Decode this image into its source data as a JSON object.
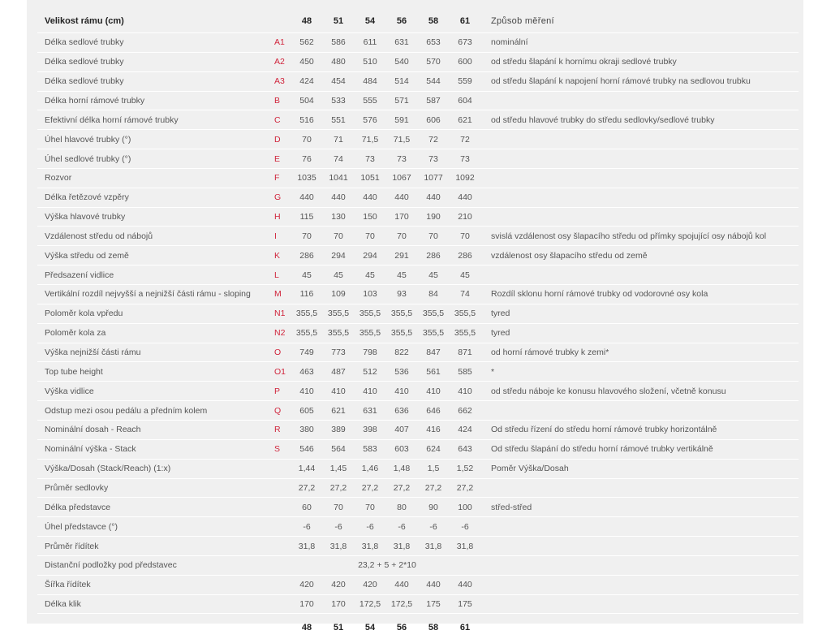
{
  "header": {
    "label": "Velikost rámu (cm)",
    "sizes": [
      "48",
      "51",
      "54",
      "56",
      "58",
      "61"
    ],
    "method": "Způsob měření"
  },
  "rows": [
    {
      "label": "Délka sedlové trubky",
      "code": "A1",
      "values": [
        "562",
        "586",
        "611",
        "631",
        "653",
        "673"
      ],
      "desc": "nominální"
    },
    {
      "label": "Délka sedlové trubky",
      "code": "A2",
      "values": [
        "450",
        "480",
        "510",
        "540",
        "570",
        "600"
      ],
      "desc": "od středu šlapání k hornímu okraji sedlové trubky"
    },
    {
      "label": "Délka sedlové trubky",
      "code": "A3",
      "values": [
        "424",
        "454",
        "484",
        "514",
        "544",
        "559"
      ],
      "desc": "od středu šlapání k napojení horní rámové trubky na sedlovou trubku"
    },
    {
      "label": "Délka horní rámové trubky",
      "code": "B",
      "values": [
        "504",
        "533",
        "555",
        "571",
        "587",
        "604"
      ],
      "desc": ""
    },
    {
      "label": "Efektivní délka horní rámové trubky",
      "code": "C",
      "values": [
        "516",
        "551",
        "576",
        "591",
        "606",
        "621"
      ],
      "desc": "od středu hlavové trubky do středu sedlovky/sedlové trubky"
    },
    {
      "label": "Úhel hlavové trubky (°)",
      "code": "D",
      "values": [
        "70",
        "71",
        "71,5",
        "71,5",
        "72",
        "72"
      ],
      "desc": ""
    },
    {
      "label": "Úhel sedlové trubky (°)",
      "code": "E",
      "values": [
        "76",
        "74",
        "73",
        "73",
        "73",
        "73"
      ],
      "desc": ""
    },
    {
      "label": "Rozvor",
      "code": "F",
      "values": [
        "1035",
        "1041",
        "1051",
        "1067",
        "1077",
        "1092"
      ],
      "desc": ""
    },
    {
      "label": "Délka řetězové vzpěry",
      "code": "G",
      "values": [
        "440",
        "440",
        "440",
        "440",
        "440",
        "440"
      ],
      "desc": ""
    },
    {
      "label": "Výška hlavové trubky",
      "code": "H",
      "values": [
        "115",
        "130",
        "150",
        "170",
        "190",
        "210"
      ],
      "desc": ""
    },
    {
      "label": "Vzdálenost středu od nábojů",
      "code": "I",
      "values": [
        "70",
        "70",
        "70",
        "70",
        "70",
        "70"
      ],
      "desc": "svislá vzdálenost osy šlapacího středu od přímky spojující osy nábojů kol"
    },
    {
      "label": "Výška středu od země",
      "code": "K",
      "values": [
        "286",
        "294",
        "294",
        "291",
        "286",
        "286"
      ],
      "desc": "vzdálenost osy šlapacího středu od země"
    },
    {
      "label": "Předsazení vidlice",
      "code": "L",
      "values": [
        "45",
        "45",
        "45",
        "45",
        "45",
        "45"
      ],
      "desc": ""
    },
    {
      "label": "Vertikální rozdíl nejvyšší a nejnižší části rámu - sloping",
      "code": "M",
      "values": [
        "116",
        "109",
        "103",
        "93",
        "84",
        "74"
      ],
      "desc": "Rozdíl sklonu horní rámové trubky od vodorovné osy kola"
    },
    {
      "label": "Poloměr kola vpředu",
      "code": "N1",
      "values": [
        "355,5",
        "355,5",
        "355,5",
        "355,5",
        "355,5",
        "355,5"
      ],
      "desc": "tyred"
    },
    {
      "label": "Poloměr kola za",
      "code": "N2",
      "values": [
        "355,5",
        "355,5",
        "355,5",
        "355,5",
        "355,5",
        "355,5"
      ],
      "desc": "tyred"
    },
    {
      "label": "Výška nejnižší části rámu",
      "code": "O",
      "values": [
        "749",
        "773",
        "798",
        "822",
        "847",
        "871"
      ],
      "desc": "od horní rámové trubky k zemi*"
    },
    {
      "label": "Top tube height",
      "code": "O1",
      "values": [
        "463",
        "487",
        "512",
        "536",
        "561",
        "585"
      ],
      "desc": "*"
    },
    {
      "label": "Výška vidlice",
      "code": "P",
      "values": [
        "410",
        "410",
        "410",
        "410",
        "410",
        "410"
      ],
      "desc": "od středu náboje ke konusu hlavového složení, včetně konusu"
    },
    {
      "label": "Odstup mezi osou pedálu a předním kolem",
      "code": "Q",
      "values": [
        "605",
        "621",
        "631",
        "636",
        "646",
        "662"
      ],
      "desc": ""
    },
    {
      "label": "Nominální dosah - Reach",
      "code": "R",
      "values": [
        "380",
        "389",
        "398",
        "407",
        "416",
        "424"
      ],
      "desc": "Od středu řízení do středu horní rámové trubky horizontálně"
    },
    {
      "label": "Nominální výška - Stack",
      "code": "S",
      "values": [
        "546",
        "564",
        "583",
        "603",
        "624",
        "643"
      ],
      "desc": "Od středu šlapání do středu horní rámové trubky vertikálně"
    },
    {
      "label": "Výška/Dosah (Stack/Reach) (1:x)",
      "code": "",
      "values": [
        "1,44",
        "1,45",
        "1,46",
        "1,48",
        "1,5",
        "1,52"
      ],
      "desc": "Poměr Výška/Dosah"
    },
    {
      "label": "Průměr sedlovky",
      "code": "",
      "values": [
        "27,2",
        "27,2",
        "27,2",
        "27,2",
        "27,2",
        "27,2"
      ],
      "desc": ""
    },
    {
      "label": "Délka představce",
      "code": "",
      "values": [
        "60",
        "70",
        "70",
        "80",
        "90",
        "100"
      ],
      "desc": "střed-střed"
    },
    {
      "label": "Úhel představce (°)",
      "code": "",
      "values": [
        "-6",
        "-6",
        "-6",
        "-6",
        "-6",
        "-6"
      ],
      "desc": ""
    },
    {
      "label": "Průměr řídítek",
      "code": "",
      "values": [
        "31,8",
        "31,8",
        "31,8",
        "31,8",
        "31,8",
        "31,8"
      ],
      "desc": ""
    },
    {
      "label": "Distanční podložky pod představec",
      "code": "",
      "span": "23,2 + 5 + 2*10",
      "desc": ""
    },
    {
      "label": "Šířka řídítek",
      "code": "",
      "values": [
        "420",
        "420",
        "420",
        "440",
        "440",
        "440"
      ],
      "desc": ""
    },
    {
      "label": "Délka klik",
      "code": "",
      "values": [
        "170",
        "170",
        "172,5",
        "172,5",
        "175",
        "175"
      ],
      "desc": ""
    }
  ],
  "footer": {
    "sizes": [
      "48",
      "51",
      "54",
      "56",
      "58",
      "61"
    ]
  },
  "colors": {
    "code": "#d0253c",
    "panel": "#f0f0f0"
  }
}
